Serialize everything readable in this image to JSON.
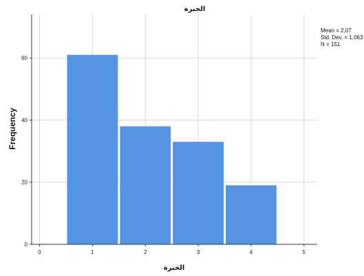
{
  "chart_data": {
    "type": "bar",
    "title": "الخبرة",
    "xlabel": "الخبرة",
    "ylabel": "Frequency",
    "categories": [
      "1",
      "2",
      "3",
      "4"
    ],
    "x": [
      1,
      2,
      3,
      4
    ],
    "values": [
      61,
      38,
      33,
      19
    ],
    "xlim": [
      -0.15,
      5.25
    ],
    "ylim": [
      0,
      74
    ],
    "xticks": [
      0,
      1,
      2,
      3,
      4,
      5
    ],
    "yticks": [
      0,
      20,
      40,
      60
    ],
    "grid": true,
    "bar_color": "#5594e4",
    "stats": {
      "mean": "Mean = 2,07",
      "std": "Std. Dev. = 1,063",
      "n": "N = 151"
    }
  }
}
